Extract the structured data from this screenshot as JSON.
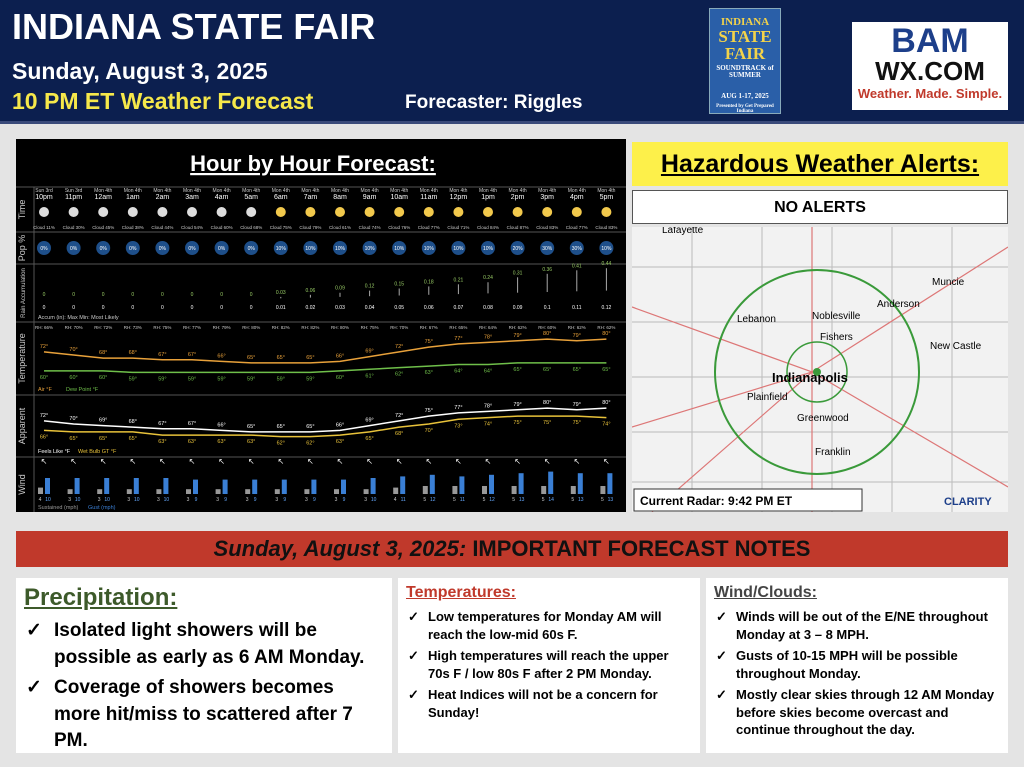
{
  "header": {
    "title": "INDIANA STATE FAIR",
    "date": "Sunday, August 3, 2025",
    "subtitle": "10 PM ET Weather Forecast",
    "forecaster": "Forecaster: Riggles",
    "fair_logo": {
      "line1": "INDIANA",
      "line2": "STATE",
      "line3": "FAIR",
      "tagline": "SOUNDTRACK of SUMMER",
      "dates": "AUG 1-17, 2025",
      "sponsor": "Presented by Get Prepared Indiana"
    },
    "brand_logo": {
      "name": "BAM",
      "site": "WX.COM",
      "slogan": "Weather. Made. Simple."
    }
  },
  "forecast": {
    "title": "Hour by Hour Forecast:",
    "row_labels": [
      "Time",
      "Pop %",
      "Rain Accumulation",
      "Temperature",
      "Apparent",
      "Wind"
    ],
    "days": [
      "Sun 3rd",
      "Sun 3rd",
      "Mon 4th",
      "Mon 4th",
      "Mon 4th",
      "Mon 4th",
      "Mon 4th",
      "Mon 4th",
      "Mon 4th",
      "Mon 4th",
      "Mon 4th",
      "Mon 4th",
      "Mon 4th",
      "Mon 4th",
      "Mon 4th",
      "Mon 4th",
      "Mon 4th",
      "Mon 4th",
      "Mon 4th",
      "Mon 4th"
    ],
    "hours": [
      "10pm",
      "11pm",
      "12am",
      "1am",
      "2am",
      "3am",
      "4am",
      "5am",
      "6am",
      "7am",
      "8am",
      "9am",
      "10am",
      "11am",
      "12pm",
      "1pm",
      "2pm",
      "3pm",
      "4pm",
      "5pm"
    ],
    "cloud": [
      "Cloud 11%",
      "Cloud 30%",
      "Cloud 45%",
      "Cloud 38%",
      "Cloud 44%",
      "Cloud 54%",
      "Cloud 60%",
      "Cloud 68%",
      "Cloud 75%",
      "Cloud 79%",
      "Cloud 61%",
      "Cloud 74%",
      "Cloud 76%",
      "Cloud 77%",
      "Cloud 71%",
      "Cloud 84%",
      "Cloud 87%",
      "Cloud 83%",
      "Cloud 77%",
      "Cloud 83%"
    ],
    "pop": [
      "0%",
      "0%",
      "0%",
      "0%",
      "0%",
      "0%",
      "0%",
      "0%",
      "10%",
      "10%",
      "10%",
      "10%",
      "10%",
      "10%",
      "10%",
      "10%",
      "20%",
      "30%",
      "30%",
      "10%"
    ],
    "rain_max": [
      0,
      0,
      0,
      0,
      0,
      0,
      0,
      0,
      0.03,
      0.06,
      0.09,
      0.12,
      0.15,
      0.18,
      0.21,
      0.24,
      0.31,
      0.36,
      0.41,
      0.44
    ],
    "rain_min": [
      0,
      0,
      0,
      0,
      0,
      0,
      0,
      0,
      0.01,
      0.02,
      0.03,
      0.04,
      0.05,
      0.06,
      0.07,
      0.08,
      0.09,
      0.1,
      0.11,
      0.12
    ],
    "rain_legend": "Accum (in): Max Min: Most Likely",
    "rh": [
      "RH: 66%",
      "RH: 70%",
      "RH: 72%",
      "RH: 73%",
      "RH: 75%",
      "RH: 77%",
      "RH: 79%",
      "RH: 80%",
      "RH: 82%",
      "RH: 82%",
      "RH: 80%",
      "RH: 75%",
      "RH: 70%",
      "RH: 67%",
      "RH: 65%",
      "RH: 64%",
      "RH: 62%",
      "RH: 60%",
      "RH: 62%",
      "RH: 62%"
    ],
    "air_temp": [
      72,
      70,
      68,
      68,
      67,
      67,
      66,
      65,
      65,
      65,
      66,
      69,
      72,
      75,
      77,
      78,
      79,
      80,
      79,
      80
    ],
    "air_temp_labels": [
      "72°",
      "70°",
      "68°",
      "68°",
      "67°",
      "67°",
      "66°",
      "65°",
      "65°",
      "65°",
      "66°",
      "69°",
      "72°",
      "75°",
      "77°",
      "78°",
      "79°",
      "80°",
      "79°",
      "80°"
    ],
    "dew_point": [
      60,
      60,
      60,
      59,
      59,
      59,
      59,
      59,
      59,
      59,
      60,
      61,
      62,
      63,
      64,
      64,
      65,
      65,
      65,
      65
    ],
    "dew_point_labels": [
      "60°",
      "60°",
      "60°",
      "59°",
      "59°",
      "59°",
      "59°",
      "59°",
      "59°",
      "59°",
      "60°",
      "61°",
      "62°",
      "63°",
      "64°",
      "64°",
      "65°",
      "65°",
      "65°",
      "65°"
    ],
    "temp_legend": [
      "Air °F",
      "Dew Point °F"
    ],
    "feels_like": [
      72,
      70,
      69,
      68,
      67,
      67,
      66,
      65,
      65,
      65,
      66,
      69,
      72,
      75,
      77,
      78,
      79,
      80,
      79,
      80
    ],
    "feels_like_labels": [
      "72°",
      "70°",
      "69°",
      "68°",
      "67°",
      "67°",
      "66°",
      "65°",
      "65°",
      "65°",
      "66°",
      "69°",
      "72°",
      "75°",
      "77°",
      "78°",
      "79°",
      "80°",
      "79°",
      "80°"
    ],
    "wet_bulb": [
      66,
      65,
      65,
      65,
      63,
      63,
      63,
      63,
      62,
      62,
      63,
      65,
      68,
      70,
      73,
      74,
      75,
      75,
      75,
      74
    ],
    "wet_bulb_labels": [
      "66°",
      "65°",
      "65°",
      "65°",
      "63°",
      "63°",
      "63°",
      "63°",
      "62°",
      "62°",
      "63°",
      "65°",
      "68°",
      "70°",
      "73°",
      "74°",
      "75°",
      "75°",
      "75°",
      "74°"
    ],
    "apparent_legend": [
      "Feels Like °F",
      "Wet Bulb GT °F"
    ],
    "sustained": [
      4,
      3,
      3,
      3,
      3,
      3,
      3,
      3,
      3,
      3,
      3,
      3,
      4,
      5,
      5,
      5,
      5,
      5,
      5,
      5
    ],
    "gust": [
      10,
      10,
      10,
      10,
      10,
      9,
      9,
      9,
      9,
      9,
      9,
      10,
      11,
      12,
      11,
      12,
      13,
      14,
      13,
      13
    ],
    "wind_legend": [
      "Sustained (mph)",
      "Gust (mph)"
    ]
  },
  "alerts": {
    "title": "Hazardous Weather Alerts:",
    "status": "NO ALERTS",
    "map_labels": [
      "Lafayette",
      "Muncie",
      "Anderson",
      "Lebanon",
      "Noblesville",
      "Fishers",
      "New Castle",
      "Indianapolis",
      "Plainfield",
      "Greenwood",
      "Franklin"
    ],
    "radar": "Current Radar: 9:42 PM ET",
    "logo": "CLARITY"
  },
  "notes": {
    "banner_date": "Sunday, August 3, 2025:",
    "banner_title": "IMPORTANT FORECAST NOTES",
    "sections": [
      {
        "title": "Precipitation:",
        "items": [
          "Isolated light showers will be possible as early as 6 AM Monday.",
          "Coverage of showers becomes more hit/miss to scattered after 7 PM."
        ]
      },
      {
        "title": "Temperatures:",
        "items": [
          "Low temperatures for Monday AM will reach the low-mid 60s F.",
          "High temperatures will reach the upper 70s F / low 80s F after 2 PM Monday.",
          "Heat Indices will not be a concern for Sunday!"
        ]
      },
      {
        "title": "Wind/Clouds:",
        "items": [
          "Winds will be out of the E/NE throughout Monday at 3 – 8  MPH.",
          "Gusts of 10-15 MPH will be possible throughout Monday.",
          "Mostly clear skies through 12 AM Monday before skies become overcast and continue throughout the day."
        ]
      }
    ]
  }
}
